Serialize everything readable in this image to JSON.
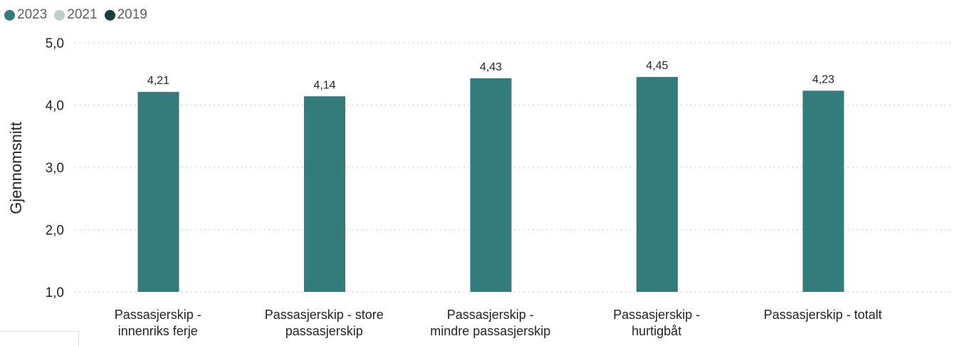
{
  "colors": {
    "series_2023": "#347b7c",
    "series_2021": "#c2cdc6",
    "series_2019": "#183f3c"
  },
  "chart_data": {
    "type": "bar",
    "categories": [
      [
        "Passasjerskip -",
        "innenriks ferje"
      ],
      [
        "Passasjerskip - store",
        "passasjerskip"
      ],
      [
        "Passasjerskip -",
        "mindre passasjerskip"
      ],
      [
        "Passasjerskip -",
        "hurtigbåt"
      ],
      [
        "Passasjerskip - totalt"
      ]
    ],
    "series": [
      {
        "name": "2023",
        "values": [
          4.21,
          4.14,
          4.43,
          4.45,
          4.23
        ],
        "data_labels": [
          "4,21",
          "4,14",
          "4,43",
          "4,45",
          "4,23"
        ]
      },
      {
        "name": "2021",
        "values": [
          null,
          null,
          null,
          null,
          null
        ]
      },
      {
        "name": "2019",
        "values": [
          null,
          null,
          null,
          null,
          null
        ]
      }
    ],
    "title": "",
    "xlabel": "",
    "ylabel": "Gjennomsnitt",
    "ylim": [
      1,
      5
    ],
    "yticks": [
      1,
      2,
      3,
      4,
      5
    ],
    "ytick_labels": [
      "1,0",
      "2,0",
      "3,0",
      "4,0",
      "5,0"
    ],
    "grid": true,
    "legend_position": "top-left"
  }
}
